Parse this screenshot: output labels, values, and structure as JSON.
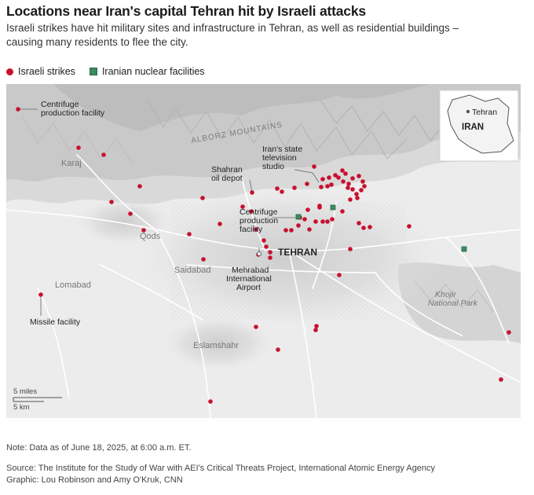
{
  "header": {
    "title": "Locations near Iran's capital Tehran hit by Israeli attacks",
    "subtitle": "Israeli strikes have hit military sites and infrastructure in Tehran, as well as residential buildings – causing many residents to flee the city."
  },
  "legend": {
    "strikes": "Israeli strikes",
    "nuclear": "Iranian nuclear facilities"
  },
  "colors": {
    "strike": "#c8102e",
    "nuclear": "#3d8a5c"
  },
  "map": {
    "region": "ALBORZ MOUNTAINS",
    "cities": {
      "tehran": "TEHRAN",
      "karaj": "Karaj",
      "qods": "Qods",
      "saidabad": "Saidabad",
      "lomabad": "Lomabad",
      "eslamshahr": "Eslamshahr"
    },
    "park": [
      "Khojir",
      "National Park"
    ],
    "annotations": {
      "centrifuge_top": [
        "Centrifuge",
        "production facility"
      ],
      "tv_studio": [
        "Iran's state",
        "television",
        "studio"
      ],
      "oil_depot": [
        "Shahran",
        "oil depot"
      ],
      "centrifuge_mid": [
        "Centrifuge",
        "production",
        "facility"
      ],
      "airport": [
        "Mehrabad",
        "International",
        "Airport"
      ],
      "missile": "Missile facility"
    },
    "inset": {
      "city": "Tehran",
      "country": "IRAN"
    },
    "scale": {
      "miles": "5 miles",
      "km": "5 km"
    }
  },
  "footer": {
    "note": "Note: Data as of June 18, 2025, at 6:00 a.m. ET.",
    "source": "Source: The Institute for the Study of War with AEI's Critical Threats Project, International Atomic Energy Agency",
    "credit": "Graphic: Lou Robinson and Amy O'Kruk, CNN"
  }
}
